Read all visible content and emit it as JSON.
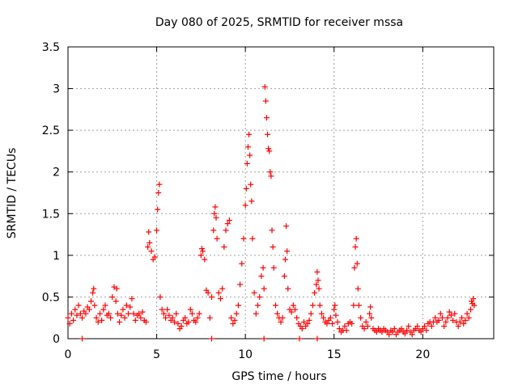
{
  "chart_data": {
    "type": "scatter",
    "title": "Day 080 of 2025, SRMTID for receiver mssa",
    "xlabel": "GPS time / hours",
    "ylabel": "SRMTID / TECUs",
    "xlim": [
      0,
      24
    ],
    "ylim": [
      0,
      3.5
    ],
    "x_ticks": [
      0,
      5,
      10,
      15,
      20
    ],
    "x_tick_labels": [
      "0",
      "5",
      "10",
      "15",
      "20"
    ],
    "y_ticks": [
      0,
      0.5,
      1,
      1.5,
      2,
      2.5,
      3,
      3.5
    ],
    "y_tick_labels": [
      "0",
      "0.5",
      "1",
      "1.5",
      "2",
      "2.5",
      "3",
      "3.5"
    ],
    "grid": true,
    "marker": "+",
    "series_color": "#ff0000",
    "series": [
      {
        "name": "SRMTID",
        "points": [
          [
            0.0,
            0.25
          ],
          [
            0.1,
            0.18
          ],
          [
            0.2,
            0.3
          ],
          [
            0.3,
            0.22
          ],
          [
            0.4,
            0.35
          ],
          [
            0.5,
            0.28
          ],
          [
            0.6,
            0.4
          ],
          [
            0.7,
            0.3
          ],
          [
            0.8,
            0.25
          ],
          [
            0.9,
            0.33
          ],
          [
            1.0,
            0.3
          ],
          [
            1.1,
            0.38
          ],
          [
            1.2,
            0.35
          ],
          [
            1.3,
            0.45
          ],
          [
            1.4,
            0.55
          ],
          [
            1.45,
            0.6
          ],
          [
            1.5,
            0.4
          ],
          [
            1.6,
            0.25
          ],
          [
            1.7,
            0.2
          ],
          [
            1.8,
            0.3
          ],
          [
            1.9,
            0.22
          ],
          [
            2.0,
            0.35
          ],
          [
            2.1,
            0.4
          ],
          [
            2.2,
            0.28
          ],
          [
            2.3,
            0.3
          ],
          [
            2.4,
            0.25
          ],
          [
            2.5,
            0.5
          ],
          [
            2.6,
            0.62
          ],
          [
            2.7,
            0.45
          ],
          [
            2.75,
            0.6
          ],
          [
            2.8,
            0.3
          ],
          [
            2.9,
            0.2
          ],
          [
            3.0,
            0.28
          ],
          [
            3.1,
            0.35
          ],
          [
            3.2,
            0.25
          ],
          [
            3.3,
            0.4
          ],
          [
            3.4,
            0.3
          ],
          [
            3.5,
            0.38
          ],
          [
            3.6,
            0.48
          ],
          [
            3.7,
            0.3
          ],
          [
            3.8,
            0.22
          ],
          [
            3.9,
            0.28
          ],
          [
            4.0,
            0.3
          ],
          [
            4.1,
            0.25
          ],
          [
            4.2,
            0.32
          ],
          [
            4.3,
            0.22
          ],
          [
            4.4,
            0.2
          ],
          [
            4.5,
            1.1
          ],
          [
            4.55,
            1.28
          ],
          [
            4.6,
            1.15
          ],
          [
            4.7,
            1.05
          ],
          [
            4.8,
            0.95
          ],
          [
            4.9,
            0.98
          ],
          [
            5.0,
            1.3
          ],
          [
            5.05,
            1.55
          ],
          [
            5.1,
            1.75
          ],
          [
            5.15,
            1.85
          ],
          [
            5.2,
            0.5
          ],
          [
            5.3,
            0.35
          ],
          [
            5.4,
            0.3
          ],
          [
            5.5,
            0.25
          ],
          [
            5.6,
            0.35
          ],
          [
            5.7,
            0.28
          ],
          [
            5.8,
            0.22
          ],
          [
            5.9,
            0.25
          ],
          [
            6.0,
            0.2
          ],
          [
            6.1,
            0.3
          ],
          [
            6.2,
            0.18
          ],
          [
            6.3,
            0.12
          ],
          [
            6.4,
            0.15
          ],
          [
            6.5,
            0.22
          ],
          [
            6.6,
            0.25
          ],
          [
            6.7,
            0.18
          ],
          [
            6.8,
            0.2
          ],
          [
            6.9,
            0.35
          ],
          [
            7.0,
            0.3
          ],
          [
            7.1,
            0.22
          ],
          [
            7.2,
            0.2
          ],
          [
            7.3,
            0.25
          ],
          [
            7.4,
            0.3
          ],
          [
            7.5,
            1.0
          ],
          [
            7.55,
            1.08
          ],
          [
            7.6,
            1.05
          ],
          [
            7.7,
            0.95
          ],
          [
            7.8,
            0.58
          ],
          [
            7.9,
            0.55
          ],
          [
            8.0,
            0.25
          ],
          [
            8.1,
            0.5
          ],
          [
            8.2,
            1.3
          ],
          [
            8.25,
            1.5
          ],
          [
            8.3,
            1.58
          ],
          [
            8.35,
            1.45
          ],
          [
            8.4,
            1.2
          ],
          [
            8.5,
            0.55
          ],
          [
            8.6,
            0.48
          ],
          [
            8.7,
            0.6
          ],
          [
            8.8,
            1.1
          ],
          [
            8.9,
            1.3
          ],
          [
            9.0,
            1.38
          ],
          [
            9.1,
            1.42
          ],
          [
            9.2,
            0.25
          ],
          [
            9.3,
            0.18
          ],
          [
            9.4,
            0.22
          ],
          [
            9.5,
            0.3
          ],
          [
            9.6,
            0.4
          ],
          [
            9.7,
            0.65
          ],
          [
            9.8,
            0.9
          ],
          [
            9.9,
            1.2
          ],
          [
            10.0,
            1.6
          ],
          [
            10.05,
            1.8
          ],
          [
            10.1,
            2.1
          ],
          [
            10.15,
            2.3
          ],
          [
            10.2,
            2.45
          ],
          [
            10.25,
            2.2
          ],
          [
            10.3,
            1.85
          ],
          [
            10.35,
            1.65
          ],
          [
            10.4,
            1.2
          ],
          [
            10.5,
            0.55
          ],
          [
            10.6,
            0.3
          ],
          [
            10.7,
            0.4
          ],
          [
            10.8,
            0.5
          ],
          [
            10.9,
            0.75
          ],
          [
            11.0,
            0.85
          ],
          [
            11.05,
            0.6
          ],
          [
            11.1,
            3.02
          ],
          [
            11.15,
            2.85
          ],
          [
            11.2,
            2.65
          ],
          [
            11.25,
            2.45
          ],
          [
            11.3,
            2.28
          ],
          [
            11.35,
            2.25
          ],
          [
            11.4,
            2.0
          ],
          [
            11.45,
            1.95
          ],
          [
            11.5,
            1.3
          ],
          [
            11.55,
            1.1
          ],
          [
            11.6,
            0.85
          ],
          [
            11.7,
            0.4
          ],
          [
            11.8,
            0.3
          ],
          [
            11.9,
            0.25
          ],
          [
            12.0,
            0.2
          ],
          [
            12.1,
            0.25
          ],
          [
            12.2,
            0.75
          ],
          [
            12.25,
            0.95
          ],
          [
            12.3,
            1.35
          ],
          [
            12.35,
            1.05
          ],
          [
            12.4,
            0.6
          ],
          [
            12.5,
            0.35
          ],
          [
            12.6,
            0.32
          ],
          [
            12.7,
            0.4
          ],
          [
            12.8,
            0.35
          ],
          [
            12.9,
            0.25
          ],
          [
            13.0,
            0.18
          ],
          [
            13.1,
            0.15
          ],
          [
            13.2,
            0.12
          ],
          [
            13.3,
            0.2
          ],
          [
            13.4,
            0.15
          ],
          [
            13.5,
            0.18
          ],
          [
            13.6,
            0.22
          ],
          [
            13.7,
            0.3
          ],
          [
            13.8,
            0.4
          ],
          [
            13.9,
            0.55
          ],
          [
            14.0,
            0.65
          ],
          [
            14.05,
            0.8
          ],
          [
            14.1,
            0.7
          ],
          [
            14.15,
            0.6
          ],
          [
            14.2,
            0.4
          ],
          [
            14.3,
            0.3
          ],
          [
            14.4,
            0.25
          ],
          [
            14.5,
            0.2
          ],
          [
            14.6,
            0.18
          ],
          [
            14.7,
            0.22
          ],
          [
            14.8,
            0.25
          ],
          [
            14.9,
            0.18
          ],
          [
            15.0,
            0.35
          ],
          [
            15.05,
            0.4
          ],
          [
            15.1,
            0.28
          ],
          [
            15.2,
            0.2
          ],
          [
            15.3,
            0.12
          ],
          [
            15.4,
            0.08
          ],
          [
            15.5,
            0.1
          ],
          [
            15.6,
            0.15
          ],
          [
            15.7,
            0.1
          ],
          [
            15.8,
            0.18
          ],
          [
            15.9,
            0.2
          ],
          [
            16.0,
            0.18
          ],
          [
            16.1,
            0.4
          ],
          [
            16.15,
            0.85
          ],
          [
            16.2,
            1.1
          ],
          [
            16.25,
            1.2
          ],
          [
            16.3,
            0.9
          ],
          [
            16.35,
            0.6
          ],
          [
            16.4,
            0.4
          ],
          [
            16.5,
            0.25
          ],
          [
            16.6,
            0.15
          ],
          [
            16.7,
            0.12
          ],
          [
            16.8,
            0.2
          ],
          [
            16.9,
            0.15
          ],
          [
            17.0,
            0.3
          ],
          [
            17.05,
            0.38
          ],
          [
            17.1,
            0.25
          ],
          [
            17.2,
            0.12
          ],
          [
            17.3,
            0.1
          ],
          [
            17.4,
            0.08
          ],
          [
            17.5,
            0.12
          ],
          [
            17.6,
            0.1
          ],
          [
            17.7,
            0.08
          ],
          [
            17.8,
            0.12
          ],
          [
            17.9,
            0.1
          ],
          [
            18.0,
            0.08
          ],
          [
            18.1,
            0.05
          ],
          [
            18.2,
            0.1
          ],
          [
            18.3,
            0.08
          ],
          [
            18.4,
            0.12
          ],
          [
            18.5,
            0.05
          ],
          [
            18.6,
            0.08
          ],
          [
            18.7,
            0.1
          ],
          [
            18.8,
            0.12
          ],
          [
            18.9,
            0.08
          ],
          [
            19.0,
            0.06
          ],
          [
            19.1,
            0.1
          ],
          [
            19.2,
            0.15
          ],
          [
            19.3,
            0.08
          ],
          [
            19.4,
            0.05
          ],
          [
            19.5,
            0.1
          ],
          [
            19.6,
            0.12
          ],
          [
            19.7,
            0.15
          ],
          [
            19.8,
            0.1
          ],
          [
            19.9,
            0.08
          ],
          [
            20.0,
            0.12
          ],
          [
            20.1,
            0.15
          ],
          [
            20.2,
            0.1
          ],
          [
            20.3,
            0.18
          ],
          [
            20.4,
            0.2
          ],
          [
            20.5,
            0.15
          ],
          [
            20.6,
            0.2
          ],
          [
            20.7,
            0.25
          ],
          [
            20.8,
            0.2
          ],
          [
            20.9,
            0.22
          ],
          [
            21.0,
            0.3
          ],
          [
            21.1,
            0.25
          ],
          [
            21.2,
            0.15
          ],
          [
            21.3,
            0.2
          ],
          [
            21.4,
            0.25
          ],
          [
            21.5,
            0.32
          ],
          [
            21.6,
            0.28
          ],
          [
            21.7,
            0.22
          ],
          [
            21.8,
            0.3
          ],
          [
            21.9,
            0.2
          ],
          [
            22.0,
            0.15
          ],
          [
            22.1,
            0.2
          ],
          [
            22.2,
            0.25
          ],
          [
            22.3,
            0.18
          ],
          [
            22.4,
            0.22
          ],
          [
            22.5,
            0.3
          ],
          [
            22.6,
            0.25
          ],
          [
            22.7,
            0.35
          ],
          [
            22.75,
            0.45
          ],
          [
            22.8,
            0.42
          ],
          [
            22.85,
            0.48
          ],
          [
            22.9,
            0.4
          ],
          [
            0.8,
            0.0
          ],
          [
            8.1,
            0.0
          ],
          [
            11.05,
            0.0
          ],
          [
            13.05,
            0.0
          ],
          [
            14.05,
            0.0
          ]
        ]
      }
    ]
  }
}
